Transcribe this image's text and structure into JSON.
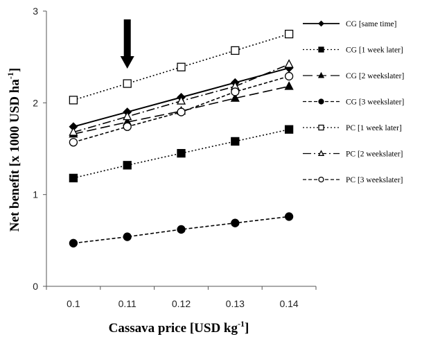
{
  "chart_data": {
    "type": "line",
    "xlabel": "Cassava price [USD kg",
    "xlabel_sup": "-1",
    "xlabel_end": "]",
    "ylabel": "Net benefit [x 1000 USD ha",
    "ylabel_sup": "-1",
    "ylabel_end": "]",
    "x": [
      0.1,
      0.11,
      0.12,
      0.13,
      0.14
    ],
    "x_tick_labels": [
      "0.1",
      "0.11",
      "0.12",
      "0.13",
      "0.14"
    ],
    "y_ticks": [
      0,
      1,
      2,
      3
    ],
    "y_tick_labels": [
      "0",
      "1",
      "2",
      "3"
    ],
    "ylim": [
      0,
      3
    ],
    "xlim": [
      0.095,
      0.145
    ],
    "grid": false,
    "legend_position": "right",
    "annotation": {
      "type": "arrow",
      "points_down_at_x": 0.11
    },
    "series": [
      {
        "name": "CG [same time]",
        "values": [
          1.74,
          1.9,
          2.06,
          2.22,
          2.38
        ],
        "marker": "diamond",
        "fill": "#000000",
        "dash": "solid"
      },
      {
        "name": "CG [1 week later]",
        "values": [
          1.18,
          1.32,
          1.45,
          1.58,
          1.71
        ],
        "marker": "square",
        "fill": "#000000",
        "dash": "dotted"
      },
      {
        "name": "CG [2 weekslater]",
        "values": [
          1.66,
          1.79,
          1.91,
          2.05,
          2.18
        ],
        "marker": "triangle",
        "fill": "#000000",
        "dash": "longdash"
      },
      {
        "name": "CG [3 weekslater]",
        "values": [
          0.47,
          0.54,
          0.62,
          0.69,
          0.76
        ],
        "marker": "circle",
        "fill": "#000000",
        "dash": "dashed"
      },
      {
        "name": "PC [1 week later]",
        "values": [
          2.03,
          2.21,
          2.39,
          2.57,
          2.75
        ],
        "marker": "square",
        "fill": "#ffffff",
        "dash": "dotted"
      },
      {
        "name": "PC [2 weekslater]",
        "values": [
          1.68,
          1.85,
          2.02,
          2.18,
          2.42
        ],
        "marker": "triangle",
        "fill": "#ffffff",
        "dash": "dashdot"
      },
      {
        "name": "PC [3 weekslater]",
        "values": [
          1.57,
          1.74,
          1.9,
          2.12,
          2.29
        ],
        "marker": "circle",
        "fill": "#ffffff",
        "dash": "dashed"
      }
    ]
  }
}
